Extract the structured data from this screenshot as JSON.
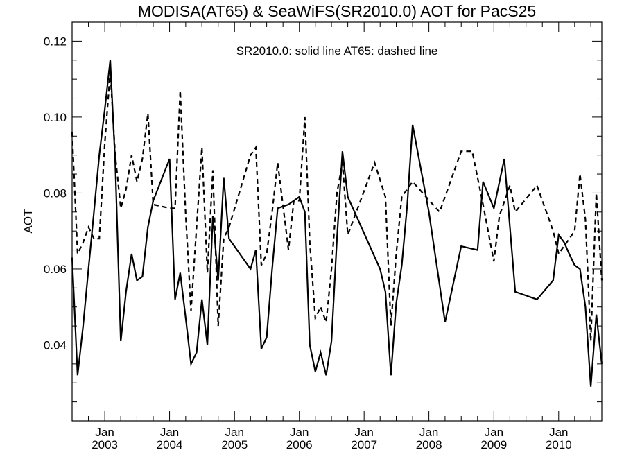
{
  "chart_data": {
    "type": "line",
    "title": "MODISA(AT65) & SeaWiFS(SR2010.0)  AOT for PacS25",
    "ylabel": "AOT",
    "xlabel": "",
    "annotation": "SR2010.0: solid line   AT65: dashed line",
    "xlim": [
      "2002-07-01",
      "2010-09-01"
    ],
    "ylim": [
      0.02,
      0.125
    ],
    "y_ticks": [
      0.04,
      0.06,
      0.08,
      0.1,
      0.12
    ],
    "y_tick_labels": [
      "0.04",
      "0.06",
      "0.08",
      "0.10",
      "0.12"
    ],
    "x_ticks": [
      {
        "date": "2003-01-01",
        "month": "Jan",
        "year": "2003"
      },
      {
        "date": "2004-01-01",
        "month": "Jan",
        "year": "2004"
      },
      {
        "date": "2005-01-01",
        "month": "Jan",
        "year": "2005"
      },
      {
        "date": "2006-01-01",
        "month": "Jan",
        "year": "2006"
      },
      {
        "date": "2007-01-01",
        "month": "Jan",
        "year": "2007"
      },
      {
        "date": "2008-01-01",
        "month": "Jan",
        "year": "2008"
      },
      {
        "date": "2009-01-01",
        "month": "Jan",
        "year": "2009"
      },
      {
        "date": "2010-01-01",
        "month": "Jan",
        "year": "2010"
      }
    ],
    "series": [
      {
        "name": "SR2010.0",
        "style": "solid",
        "points": [
          [
            "2002-07-01",
            0.063
          ],
          [
            "2002-08-01",
            0.032
          ],
          [
            "2002-09-01",
            0.045
          ],
          [
            "2002-10-01",
            0.06
          ],
          [
            "2002-11-01",
            0.075
          ],
          [
            "2002-12-01",
            0.09
          ],
          [
            "2003-01-01",
            0.102
          ],
          [
            "2003-02-01",
            0.115
          ],
          [
            "2003-03-01",
            0.088
          ],
          [
            "2003-04-01",
            0.041
          ],
          [
            "2003-05-01",
            0.054
          ],
          [
            "2003-06-01",
            0.064
          ],
          [
            "2003-07-01",
            0.057
          ],
          [
            "2003-08-01",
            0.058
          ],
          [
            "2003-09-01",
            0.071
          ],
          [
            "2003-10-01",
            0.078
          ],
          [
            "2004-01-01",
            0.089
          ],
          [
            "2004-02-01",
            0.052
          ],
          [
            "2004-03-01",
            0.059
          ],
          [
            "2004-04-01",
            0.047
          ],
          [
            "2004-05-01",
            0.035
          ],
          [
            "2004-06-01",
            0.038
          ],
          [
            "2004-07-01",
            0.052
          ],
          [
            "2004-08-01",
            0.04
          ],
          [
            "2004-09-01",
            0.074
          ],
          [
            "2004-10-01",
            0.057
          ],
          [
            "2004-11-01",
            0.084
          ],
          [
            "2004-12-01",
            0.068
          ],
          [
            "2005-04-01",
            0.06
          ],
          [
            "2005-05-01",
            0.065
          ],
          [
            "2005-06-01",
            0.039
          ],
          [
            "2005-07-01",
            0.042
          ],
          [
            "2005-08-01",
            0.06
          ],
          [
            "2005-09-01",
            0.076
          ],
          [
            "2005-11-01",
            0.077
          ],
          [
            "2005-12-01",
            0.078
          ],
          [
            "2006-01-01",
            0.079
          ],
          [
            "2006-02-01",
            0.075
          ],
          [
            "2006-03-01",
            0.04
          ],
          [
            "2006-04-01",
            0.033
          ],
          [
            "2006-05-01",
            0.038
          ],
          [
            "2006-06-01",
            0.032
          ],
          [
            "2006-07-01",
            0.041
          ],
          [
            "2006-08-01",
            0.068
          ],
          [
            "2006-09-01",
            0.091
          ],
          [
            "2006-10-01",
            0.079
          ],
          [
            "2007-04-01",
            0.06
          ],
          [
            "2007-05-01",
            0.054
          ],
          [
            "2007-06-01",
            0.032
          ],
          [
            "2007-07-01",
            0.051
          ],
          [
            "2007-08-01",
            0.061
          ],
          [
            "2007-09-01",
            0.077
          ],
          [
            "2007-10-01",
            0.098
          ],
          [
            "2008-01-01",
            0.075
          ],
          [
            "2008-04-01",
            0.046
          ],
          [
            "2008-07-01",
            0.066
          ],
          [
            "2008-10-01",
            0.065
          ],
          [
            "2008-11-01",
            0.083
          ],
          [
            "2009-01-01",
            0.076
          ],
          [
            "2009-03-01",
            0.089
          ],
          [
            "2009-05-01",
            0.054
          ],
          [
            "2009-09-01",
            0.052
          ],
          [
            "2009-12-01",
            0.057
          ],
          [
            "2010-01-01",
            0.069
          ],
          [
            "2010-02-01",
            0.067
          ],
          [
            "2010-03-01",
            0.064
          ],
          [
            "2010-04-01",
            0.061
          ],
          [
            "2010-05-01",
            0.06
          ],
          [
            "2010-06-01",
            0.05
          ],
          [
            "2010-07-01",
            0.029
          ],
          [
            "2010-08-01",
            0.048
          ],
          [
            "2010-09-01",
            0.035
          ]
        ]
      },
      {
        "name": "AT65",
        "style": "dashed",
        "points": [
          [
            "2002-07-01",
            0.096
          ],
          [
            "2002-08-01",
            0.064
          ],
          [
            "2002-09-01",
            0.067
          ],
          [
            "2002-10-01",
            0.071
          ],
          [
            "2002-11-01",
            0.068
          ],
          [
            "2002-12-01",
            0.068
          ],
          [
            "2003-01-01",
            0.093
          ],
          [
            "2003-02-01",
            0.112
          ],
          [
            "2003-03-01",
            0.09
          ],
          [
            "2003-04-01",
            0.076
          ],
          [
            "2003-05-01",
            0.081
          ],
          [
            "2003-06-01",
            0.09
          ],
          [
            "2003-07-01",
            0.083
          ],
          [
            "2003-08-01",
            0.089
          ],
          [
            "2003-09-01",
            0.101
          ],
          [
            "2003-10-01",
            0.077
          ],
          [
            "2004-01-01",
            0.076
          ],
          [
            "2004-02-01",
            0.076
          ],
          [
            "2004-03-01",
            0.107
          ],
          [
            "2004-04-01",
            0.074
          ],
          [
            "2004-05-01",
            0.049
          ],
          [
            "2004-06-01",
            0.071
          ],
          [
            "2004-07-01",
            0.092
          ],
          [
            "2004-08-01",
            0.059
          ],
          [
            "2004-09-01",
            0.086
          ],
          [
            "2004-10-01",
            0.045
          ],
          [
            "2004-11-01",
            0.068
          ],
          [
            "2004-12-01",
            0.071
          ],
          [
            "2005-04-01",
            0.09
          ],
          [
            "2005-05-01",
            0.092
          ],
          [
            "2005-06-01",
            0.061
          ],
          [
            "2005-07-01",
            0.064
          ],
          [
            "2005-08-01",
            0.075
          ],
          [
            "2005-09-01",
            0.088
          ],
          [
            "2005-11-01",
            0.065
          ],
          [
            "2005-12-01",
            0.078
          ],
          [
            "2006-01-01",
            0.078
          ],
          [
            "2006-02-01",
            0.1
          ],
          [
            "2006-03-01",
            0.067
          ],
          [
            "2006-04-01",
            0.047
          ],
          [
            "2006-05-01",
            0.05
          ],
          [
            "2006-06-01",
            0.046
          ],
          [
            "2006-07-01",
            0.06
          ],
          [
            "2006-08-01",
            0.08
          ],
          [
            "2006-09-01",
            0.088
          ],
          [
            "2006-10-01",
            0.069
          ],
          [
            "2007-03-01",
            0.088
          ],
          [
            "2007-05-01",
            0.079
          ],
          [
            "2007-06-01",
            0.045
          ],
          [
            "2007-07-01",
            0.064
          ],
          [
            "2007-08-01",
            0.079
          ],
          [
            "2007-10-01",
            0.083
          ],
          [
            "2008-03-01",
            0.075
          ],
          [
            "2008-07-01",
            0.091
          ],
          [
            "2008-09-01",
            0.091
          ],
          [
            "2008-11-01",
            0.077
          ],
          [
            "2009-01-01",
            0.062
          ],
          [
            "2009-02-01",
            0.074
          ],
          [
            "2009-04-01",
            0.082
          ],
          [
            "2009-05-01",
            0.075
          ],
          [
            "2009-09-01",
            0.082
          ],
          [
            "2009-12-01",
            0.07
          ],
          [
            "2010-01-01",
            0.064
          ],
          [
            "2010-04-01",
            0.07
          ],
          [
            "2010-05-01",
            0.085
          ],
          [
            "2010-06-01",
            0.073
          ],
          [
            "2010-07-01",
            0.041
          ],
          [
            "2010-08-01",
            0.08
          ],
          [
            "2010-09-01",
            0.057
          ]
        ]
      }
    ]
  }
}
